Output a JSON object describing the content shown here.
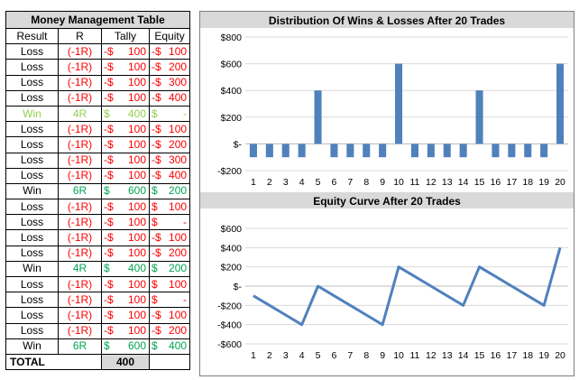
{
  "table": {
    "title": "Money Management Table",
    "headers": [
      "Result",
      "R",
      "Tally",
      "Equity"
    ],
    "rows": [
      {
        "result": "Loss",
        "r": "(-1R)",
        "tally_sign": "-$",
        "tally": "100",
        "equity_sign": "-$",
        "equity": "100",
        "color": "red"
      },
      {
        "result": "Loss",
        "r": "(-1R)",
        "tally_sign": "-$",
        "tally": "100",
        "equity_sign": "-$",
        "equity": "200",
        "color": "red"
      },
      {
        "result": "Loss",
        "r": "(-1R)",
        "tally_sign": "-$",
        "tally": "100",
        "equity_sign": "-$",
        "equity": "300",
        "color": "red"
      },
      {
        "result": "Loss",
        "r": "(-1R)",
        "tally_sign": "-$",
        "tally": "100",
        "equity_sign": "-$",
        "equity": "400",
        "color": "red"
      },
      {
        "result": "Win",
        "r": "4R",
        "tally_sign": "$",
        "tally": "400",
        "equity_sign": "$",
        "equity": "-",
        "color": "lightgreen"
      },
      {
        "result": "Loss",
        "r": "(-1R)",
        "tally_sign": "-$",
        "tally": "100",
        "equity_sign": "-$",
        "equity": "100",
        "color": "red"
      },
      {
        "result": "Loss",
        "r": "(-1R)",
        "tally_sign": "-$",
        "tally": "100",
        "equity_sign": "-$",
        "equity": "200",
        "color": "red"
      },
      {
        "result": "Loss",
        "r": "(-1R)",
        "tally_sign": "-$",
        "tally": "100",
        "equity_sign": "-$",
        "equity": "300",
        "color": "red"
      },
      {
        "result": "Loss",
        "r": "(-1R)",
        "tally_sign": "-$",
        "tally": "100",
        "equity_sign": "-$",
        "equity": "400",
        "color": "red"
      },
      {
        "result": "Win",
        "r": "6R",
        "tally_sign": "$",
        "tally": "600",
        "equity_sign": "$",
        "equity": "200",
        "color": "green"
      },
      {
        "result": "Loss",
        "r": "(-1R)",
        "tally_sign": "-$",
        "tally": "100",
        "equity_sign": "$",
        "equity": "100",
        "color": "red"
      },
      {
        "result": "Loss",
        "r": "(-1R)",
        "tally_sign": "-$",
        "tally": "100",
        "equity_sign": "$",
        "equity": "-",
        "color": "red"
      },
      {
        "result": "Loss",
        "r": "(-1R)",
        "tally_sign": "-$",
        "tally": "100",
        "equity_sign": "-$",
        "equity": "100",
        "color": "red"
      },
      {
        "result": "Loss",
        "r": "(-1R)",
        "tally_sign": "-$",
        "tally": "100",
        "equity_sign": "-$",
        "equity": "200",
        "color": "red"
      },
      {
        "result": "Win",
        "r": "4R",
        "tally_sign": "$",
        "tally": "400",
        "equity_sign": "$",
        "equity": "200",
        "color": "green"
      },
      {
        "result": "Loss",
        "r": "(-1R)",
        "tally_sign": "-$",
        "tally": "100",
        "equity_sign": "$",
        "equity": "100",
        "color": "red"
      },
      {
        "result": "Loss",
        "r": "(-1R)",
        "tally_sign": "-$",
        "tally": "100",
        "equity_sign": "$",
        "equity": "-",
        "color": "red"
      },
      {
        "result": "Loss",
        "r": "(-1R)",
        "tally_sign": "-$",
        "tally": "100",
        "equity_sign": "-$",
        "equity": "100",
        "color": "red"
      },
      {
        "result": "Loss",
        "r": "(-1R)",
        "tally_sign": "-$",
        "tally": "100",
        "equity_sign": "-$",
        "equity": "200",
        "color": "red"
      },
      {
        "result": "Win",
        "r": "6R",
        "tally_sign": "$",
        "tally": "600",
        "equity_sign": "$",
        "equity": "400",
        "color": "green"
      }
    ],
    "total_label": "TOTAL",
    "total_value": "400"
  },
  "colors": {
    "loss_text": "#ff0000",
    "win_text": "#00a550",
    "first_win_text": "#92d050",
    "bar_fill": "#4f81bd",
    "line_stroke": "#4f81bd",
    "header_fill": "#d9d9d9",
    "grid": "#d9d9d9"
  },
  "chart_data": [
    {
      "type": "bar",
      "title": "Distribution Of Wins & Losses After 20 Trades",
      "categories": [
        "1",
        "2",
        "3",
        "4",
        "5",
        "6",
        "7",
        "8",
        "9",
        "10",
        "11",
        "12",
        "13",
        "14",
        "15",
        "16",
        "17",
        "18",
        "19",
        "20"
      ],
      "values": [
        -100,
        -100,
        -100,
        -100,
        400,
        -100,
        -100,
        -100,
        -100,
        600,
        -100,
        -100,
        -100,
        -100,
        400,
        -100,
        -100,
        -100,
        -100,
        600
      ],
      "ylim": [
        -200,
        800
      ],
      "yticks": [
        -200,
        0,
        200,
        400,
        600,
        800
      ],
      "ytick_labels": [
        "-$200",
        "$-",
        "$200",
        "$400",
        "$600",
        "$800"
      ],
      "grid": true,
      "legend": "none",
      "xlabel": "",
      "ylabel": ""
    },
    {
      "type": "line",
      "title": "Equity Curve After 20 Trades",
      "categories": [
        "1",
        "2",
        "3",
        "4",
        "5",
        "6",
        "7",
        "8",
        "9",
        "10",
        "11",
        "12",
        "13",
        "14",
        "15",
        "16",
        "17",
        "18",
        "19",
        "20"
      ],
      "values": [
        -100,
        -200,
        -300,
        -400,
        0,
        -100,
        -200,
        -300,
        -400,
        200,
        100,
        0,
        -100,
        -200,
        200,
        100,
        0,
        -100,
        -200,
        400
      ],
      "ylim": [
        -600,
        600
      ],
      "yticks": [
        -600,
        -400,
        -200,
        0,
        200,
        400,
        600
      ],
      "ytick_labels": [
        "-$600",
        "-$400",
        "-$200",
        "$-",
        "$200",
        "$400",
        "$600"
      ],
      "grid": true,
      "legend": "none",
      "xlabel": "",
      "ylabel": ""
    }
  ]
}
